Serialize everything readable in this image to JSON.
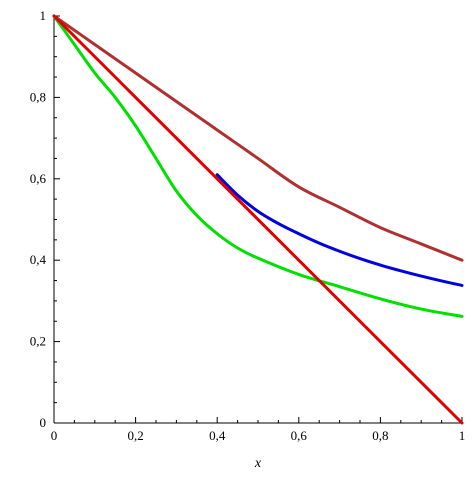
{
  "chart_data": {
    "type": "line",
    "title": "",
    "xlabel": "x",
    "ylabel": "",
    "xlim": [
      0,
      1
    ],
    "ylim": [
      0,
      1
    ],
    "grid": false,
    "legend": "none",
    "x_ticks": [
      "0",
      "0,2",
      "0,4",
      "0,6",
      "0,8",
      "1"
    ],
    "y_ticks": [
      "0",
      "0,2",
      "0,4",
      "0,6",
      "0,8",
      "1"
    ],
    "x_tick_values": [
      0,
      0.2,
      0.4,
      0.6,
      0.8,
      1
    ],
    "y_tick_values": [
      0,
      0.2,
      0.4,
      0.6,
      0.8,
      1
    ],
    "series": [
      {
        "color": "#b03030",
        "x": [
          0,
          0.1,
          0.2,
          0.3,
          0.4,
          0.5,
          0.6,
          0.7,
          0.8,
          0.9,
          1.0
        ],
        "y": [
          1.0,
          0.93,
          0.86,
          0.79,
          0.72,
          0.65,
          0.58,
          0.53,
          0.48,
          0.44,
          0.4
        ]
      },
      {
        "color": "#0000e0",
        "x": [
          0.4,
          0.45,
          0.5,
          0.55,
          0.6,
          0.65,
          0.7,
          0.75,
          0.8,
          0.85,
          0.9,
          0.95,
          1.0
        ],
        "y": [
          0.61,
          0.56,
          0.52,
          0.49,
          0.465,
          0.442,
          0.422,
          0.404,
          0.388,
          0.374,
          0.361,
          0.349,
          0.338
        ]
      },
      {
        "color": "#00e000",
        "x": [
          0,
          0.05,
          0.1,
          0.15,
          0.2,
          0.25,
          0.3,
          0.35,
          0.4,
          0.45,
          0.5,
          0.6,
          0.7,
          0.8,
          0.9,
          1.0
        ],
        "y": [
          1.0,
          0.93,
          0.86,
          0.8,
          0.73,
          0.65,
          0.57,
          0.51,
          0.465,
          0.43,
          0.405,
          0.365,
          0.335,
          0.305,
          0.28,
          0.262
        ]
      },
      {
        "color": "#e00000",
        "x": [
          0,
          1
        ],
        "y": [
          1.0,
          0.0
        ]
      }
    ]
  }
}
